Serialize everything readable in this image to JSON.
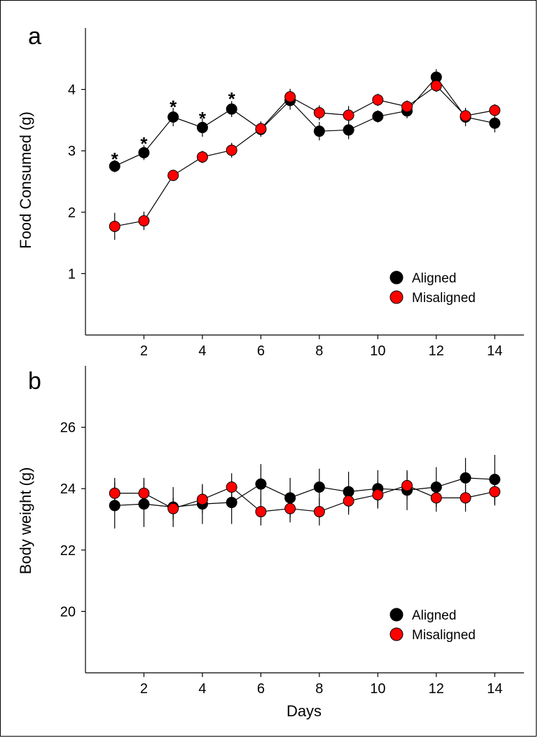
{
  "colors": {
    "aligned": "#000000",
    "misaligned": "#ff0000",
    "line": "#000000"
  },
  "chart_data": [
    {
      "panel": "a",
      "type": "line",
      "title": "",
      "xlabel": "",
      "ylabel": "Food Consumed (g)",
      "xlim": [
        0,
        15
      ],
      "ylim": [
        0,
        5
      ],
      "x_ticks": [
        2,
        4,
        6,
        8,
        10,
        12,
        14
      ],
      "y_ticks": [
        1,
        2,
        3,
        4
      ],
      "grid": false,
      "legend_position": "bottom-right",
      "x": [
        1,
        2,
        3,
        4,
        5,
        6,
        7,
        8,
        9,
        10,
        11,
        12,
        13,
        14
      ],
      "series": [
        {
          "name": "Aligned",
          "values": [
            2.75,
            2.97,
            3.55,
            3.38,
            3.68,
            3.35,
            3.82,
            3.32,
            3.34,
            3.56,
            3.65,
            4.2,
            3.55,
            3.45
          ],
          "errors": [
            0.1,
            0.12,
            0.15,
            0.15,
            0.13,
            0.12,
            0.15,
            0.15,
            0.15,
            0.1,
            0.12,
            0.13,
            0.15,
            0.15
          ]
        },
        {
          "name": "Misaligned",
          "values": [
            1.77,
            1.86,
            2.6,
            2.9,
            3.01,
            3.36,
            3.88,
            3.62,
            3.58,
            3.83,
            3.72,
            4.06,
            3.57,
            3.66
          ],
          "errors": [
            0.22,
            0.15,
            0.08,
            0.1,
            0.12,
            0.12,
            0.13,
            0.12,
            0.15,
            0.1,
            0.1,
            0.1,
            0.12,
            0.1
          ]
        }
      ],
      "annotations": [
        {
          "text": "*",
          "x": 1,
          "y": 2.97
        },
        {
          "text": "*",
          "x": 2,
          "y": 3.22
        },
        {
          "text": "*",
          "x": 3,
          "y": 3.82
        },
        {
          "text": "*",
          "x": 4,
          "y": 3.63
        },
        {
          "text": "*",
          "x": 5,
          "y": 3.95
        }
      ]
    },
    {
      "panel": "b",
      "type": "line",
      "title": "",
      "xlabel": "Days",
      "ylabel": "Body weight (g)",
      "xlim": [
        0,
        15
      ],
      "ylim": [
        18,
        28
      ],
      "x_ticks": [
        2,
        4,
        6,
        8,
        10,
        12,
        14
      ],
      "y_ticks": [
        20,
        22,
        24,
        26
      ],
      "grid": false,
      "legend_position": "bottom-right",
      "x": [
        1,
        2,
        3,
        4,
        5,
        6,
        7,
        8,
        9,
        10,
        11,
        12,
        13,
        14
      ],
      "series": [
        {
          "name": "Aligned",
          "values": [
            23.45,
            23.5,
            23.4,
            23.5,
            23.55,
            24.15,
            23.7,
            24.05,
            23.9,
            24.0,
            23.95,
            24.05,
            24.35,
            24.3
          ],
          "errors": [
            0.75,
            0.75,
            0.65,
            0.65,
            0.7,
            0.65,
            0.65,
            0.6,
            0.65,
            0.6,
            0.65,
            0.65,
            0.65,
            0.8
          ]
        },
        {
          "name": "Misaligned",
          "values": [
            23.85,
            23.85,
            23.35,
            23.65,
            24.05,
            23.25,
            23.35,
            23.25,
            23.6,
            23.8,
            24.1,
            23.7,
            23.7,
            23.9
          ],
          "errors": [
            0.5,
            0.5,
            0.35,
            0.45,
            0.45,
            0.45,
            0.45,
            0.45,
            0.45,
            0.45,
            0.45,
            0.45,
            0.45,
            0.45
          ]
        }
      ],
      "annotations": []
    }
  ]
}
